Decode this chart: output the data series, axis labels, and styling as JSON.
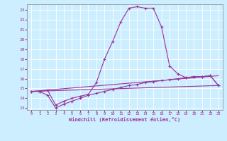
{
  "xlabel": "Windchill (Refroidissement éolien,°C)",
  "bg_color": "#cceeff",
  "grid_color": "#ffffff",
  "line_color": "#993399",
  "xlim": [
    -0.5,
    23.5
  ],
  "ylim": [
    12.8,
    23.6
  ],
  "yticks": [
    13,
    14,
    15,
    16,
    17,
    18,
    19,
    20,
    21,
    22,
    23
  ],
  "xticks": [
    0,
    1,
    2,
    3,
    4,
    5,
    6,
    7,
    8,
    9,
    10,
    11,
    12,
    13,
    14,
    15,
    16,
    17,
    18,
    19,
    20,
    21,
    22,
    23
  ],
  "line1_x": [
    0,
    1,
    2,
    3,
    4,
    5,
    6,
    7,
    8,
    9,
    10,
    11,
    12,
    13,
    14,
    15,
    16,
    17,
    18,
    19,
    20,
    21,
    22,
    23
  ],
  "line1_y": [
    14.7,
    14.7,
    14.8,
    13.3,
    13.7,
    14.0,
    14.2,
    14.4,
    15.6,
    18.0,
    19.8,
    21.8,
    23.2,
    23.35,
    23.2,
    23.2,
    21.3,
    17.3,
    16.5,
    16.1,
    16.2,
    16.2,
    16.3,
    15.3
  ],
  "line2_x": [
    0,
    1,
    2,
    3,
    4,
    5,
    6,
    7,
    8,
    9,
    10,
    11,
    12,
    13,
    14,
    15,
    16,
    17,
    18,
    19,
    20,
    21,
    22,
    23
  ],
  "line2_y": [
    14.7,
    14.7,
    14.3,
    13.0,
    13.4,
    13.7,
    14.0,
    14.3,
    14.5,
    14.7,
    14.9,
    15.1,
    15.3,
    15.4,
    15.6,
    15.7,
    15.8,
    15.9,
    16.0,
    16.1,
    16.2,
    16.2,
    16.3,
    15.3
  ],
  "line3_x": [
    0,
    23
  ],
  "line3_y": [
    14.7,
    16.3
  ],
  "line4_x": [
    0,
    23
  ],
  "line4_y": [
    14.7,
    15.3
  ]
}
